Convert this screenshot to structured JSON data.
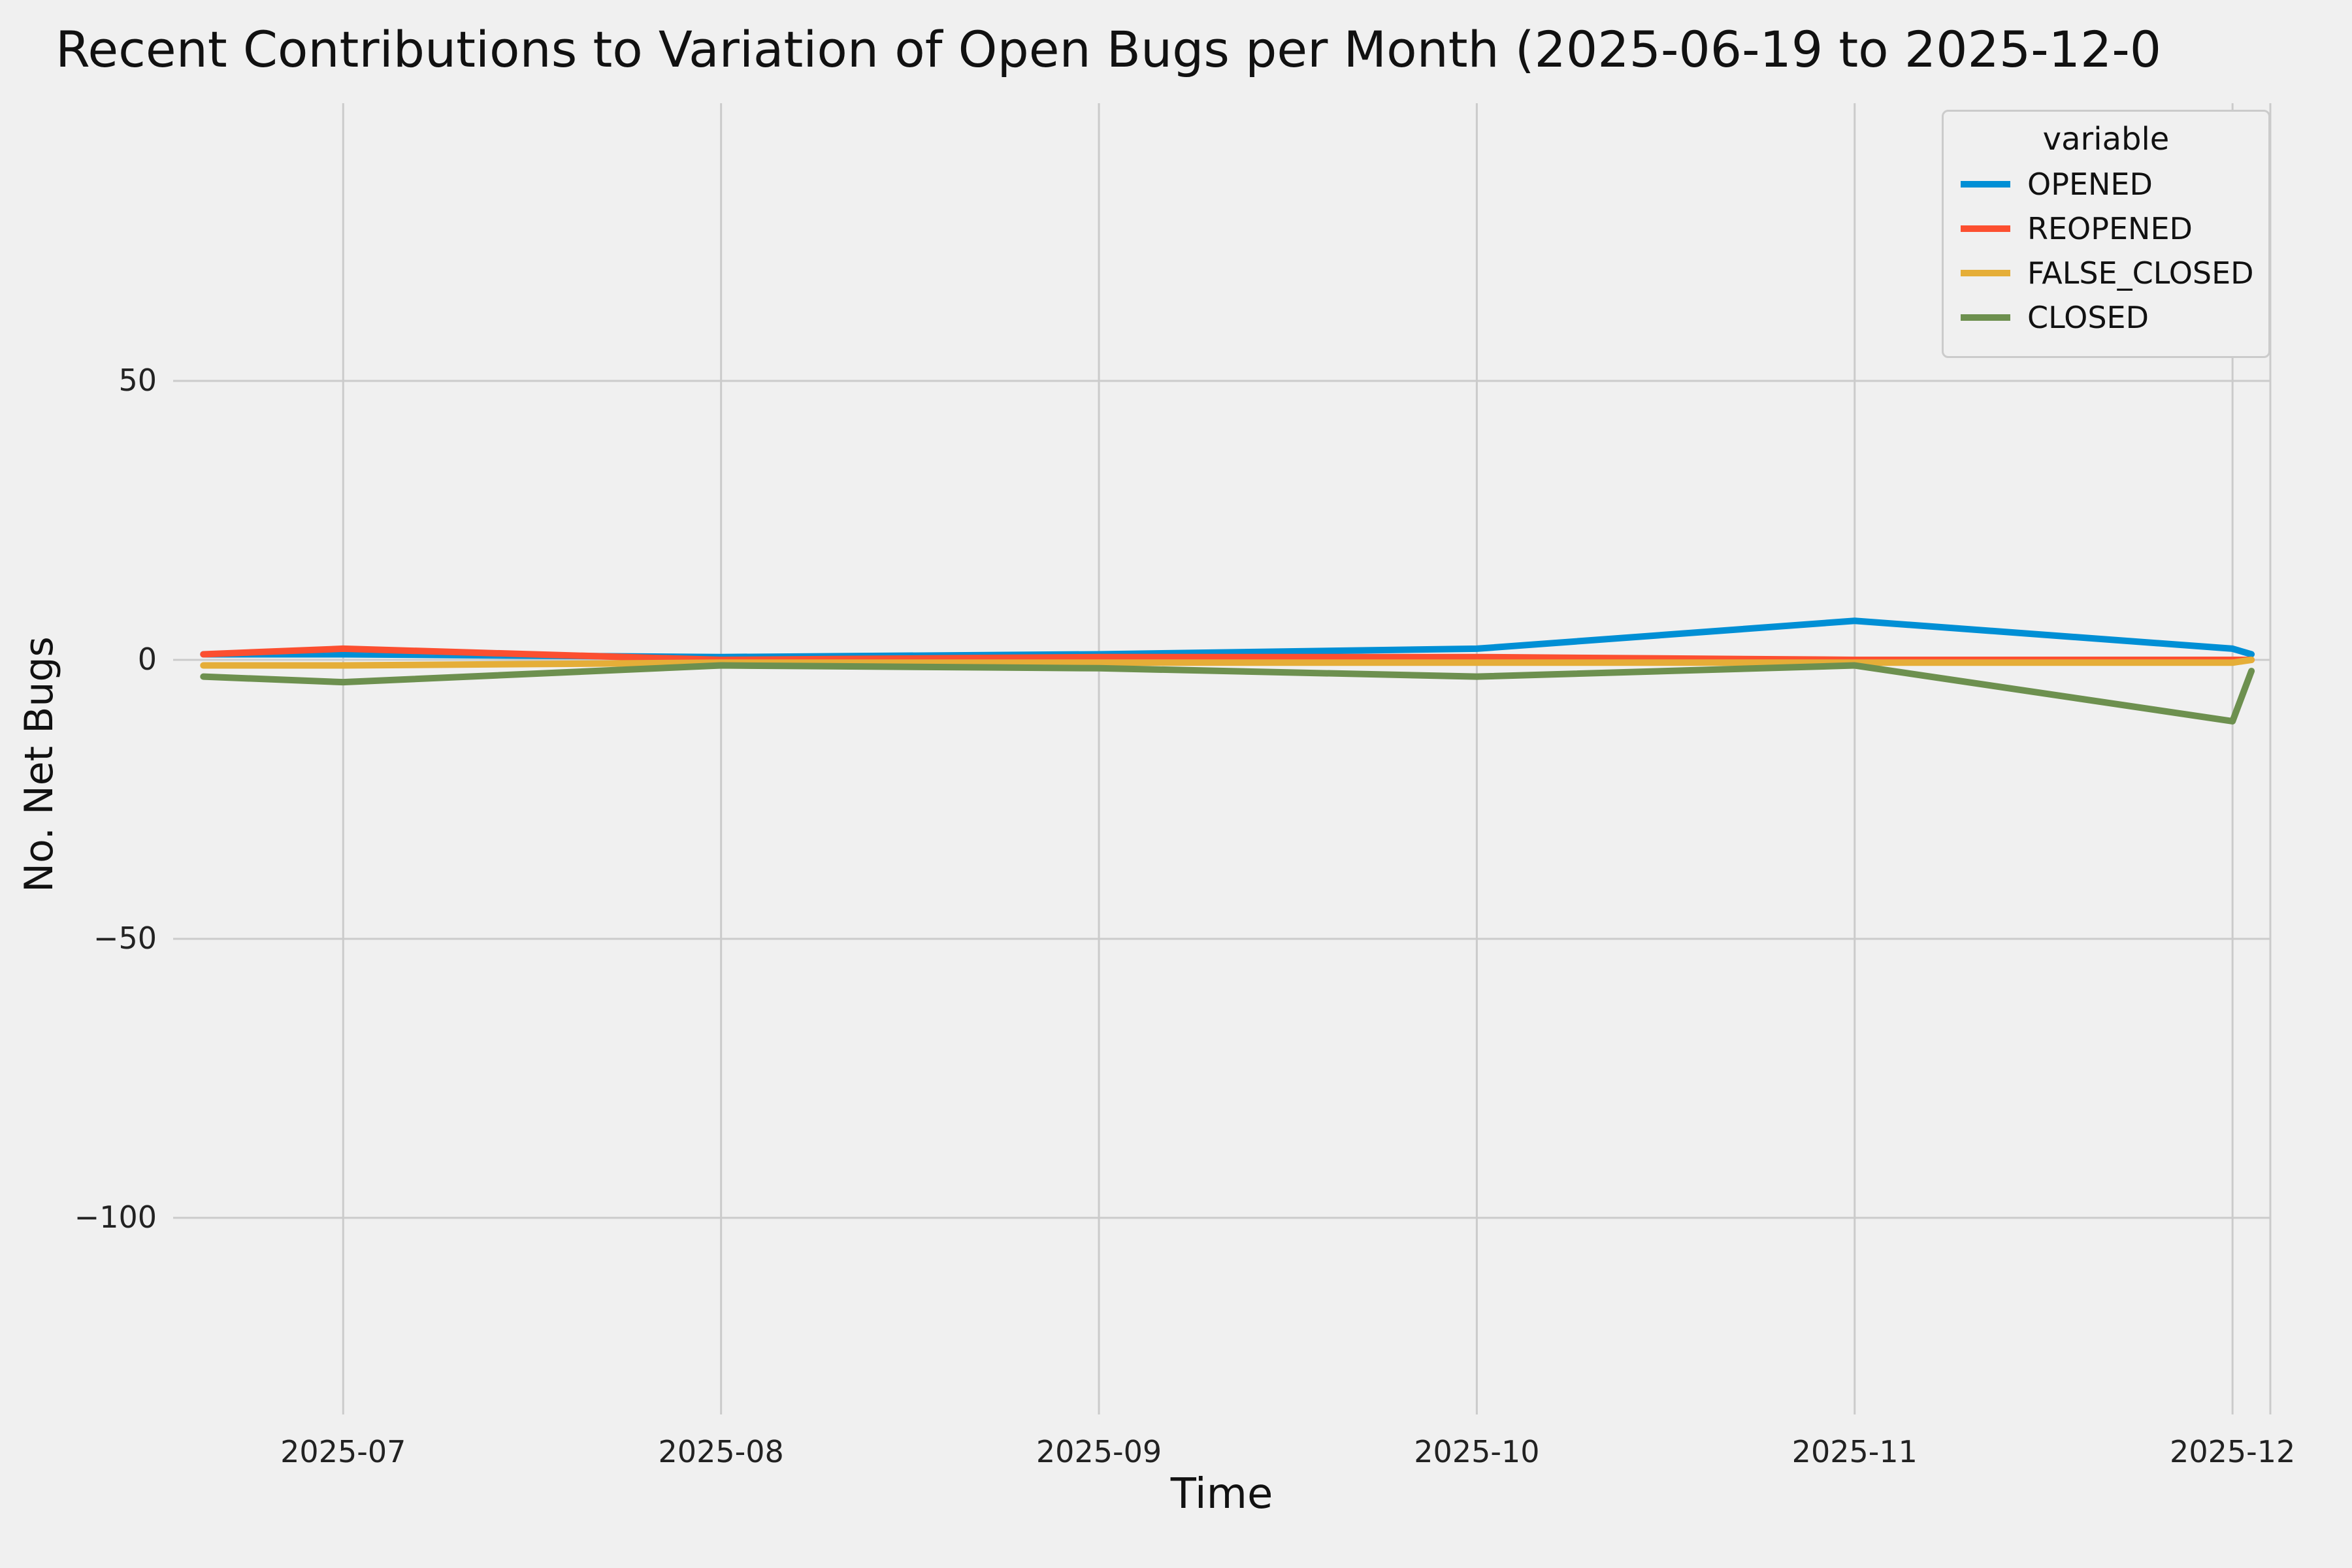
{
  "chart": {
    "title": "Recent Contributions to Variation of Open Bugs per Month (2025-06-19 to 2025-12-0",
    "xlabel": "Time",
    "ylabel": "No. Net Bugs",
    "legend_title": "variable"
  },
  "chart_data": {
    "type": "line",
    "title": "Recent Contributions to Variation of Open Bugs per Month (2025-06-19 to 2025-12-0",
    "xlabel": "Time",
    "ylabel": "No. Net Bugs",
    "x_ticks": [
      "2025-07",
      "2025-08",
      "2025-09",
      "2025-10",
      "2025-11",
      "2025-12"
    ],
    "y_ticks": [
      50,
      0,
      -50,
      -100
    ],
    "ylim": [
      -135,
      100
    ],
    "x_months": [
      6.63,
      7,
      8,
      9,
      10,
      11,
      12,
      12.05
    ],
    "grid": true,
    "legend_position": "upper right",
    "legend_title": "variable",
    "background": "#f0f0f0",
    "grid_color": "#cbcbcb",
    "series": [
      {
        "name": "OPENED",
        "color": "#008fd5",
        "values": [
          1,
          1,
          0.5,
          1,
          2,
          7,
          2,
          1
        ]
      },
      {
        "name": "REOPENED",
        "color": "#fc4f30",
        "values": [
          1,
          2,
          0,
          0.5,
          0.5,
          0,
          0,
          0
        ]
      },
      {
        "name": "FALSE_CLOSED",
        "color": "#e5ae38",
        "values": [
          -1,
          -1,
          -0.5,
          -0.5,
          -0.5,
          -0.5,
          -0.5,
          0
        ]
      },
      {
        "name": "CLOSED",
        "color": "#6d904f",
        "values": [
          -3,
          -4,
          -1,
          -1.5,
          -3,
          -1,
          -11,
          -2
        ]
      }
    ]
  }
}
